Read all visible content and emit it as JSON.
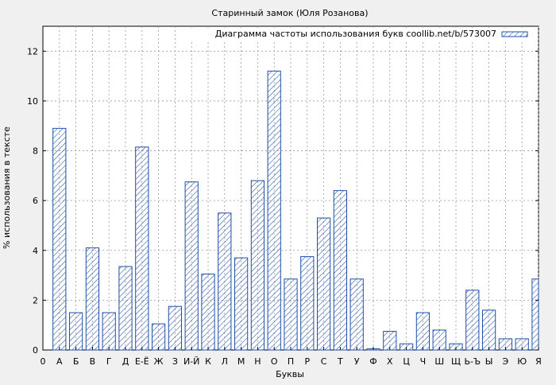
{
  "chart_data": {
    "type": "bar",
    "title": "Старинный замок (Юля Розанова)",
    "xlabel": "Буквы",
    "ylabel": "% использования в тексте",
    "legend": "Диаграмма частоты использования букв coollib.net/b/573007",
    "legend_position": "top-right",
    "grid": true,
    "ylim": [
      0,
      13
    ],
    "yticks": [
      0,
      2,
      4,
      6,
      8,
      10,
      12
    ],
    "x_origin_label": "0",
    "categories": [
      "А",
      "Б",
      "В",
      "Г",
      "Д",
      "Е-Ё",
      "Ж",
      "З",
      "И-Й",
      "К",
      "Л",
      "М",
      "Н",
      "О",
      "П",
      "Р",
      "С",
      "Т",
      "У",
      "Ф",
      "Х",
      "Ц",
      "Ч",
      "Ш",
      "Щ",
      "Ь-Ъ",
      "Ы",
      "Э",
      "Ю",
      "Я"
    ],
    "values": [
      8.9,
      1.5,
      4.1,
      1.5,
      3.35,
      8.15,
      1.05,
      1.75,
      6.75,
      3.05,
      5.5,
      3.7,
      6.8,
      11.2,
      2.85,
      3.75,
      5.3,
      6.4,
      2.85,
      0.05,
      0.75,
      0.25,
      1.5,
      0.8,
      0.25,
      2.4,
      1.6,
      0.45,
      0.45,
      2.85
    ],
    "colors": {
      "bar": "#1f4fa8",
      "grid": "#999999",
      "background": "#f0f0f0",
      "plot_background": "#ffffff"
    }
  }
}
